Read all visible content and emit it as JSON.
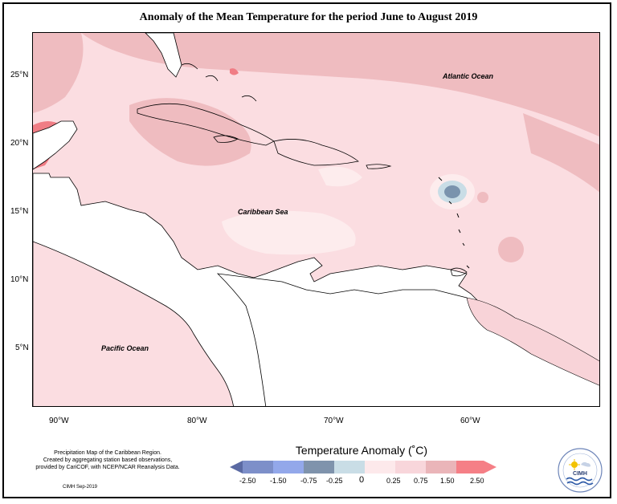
{
  "title": "Anomaly of the Mean Temperature for the period June to August 2019",
  "map": {
    "lat_ticks": [
      "25°N",
      "20°N",
      "15°N",
      "10°N",
      "5°N"
    ],
    "lon_ticks": [
      "90°W",
      "80°W",
      "70°W",
      "60°W"
    ],
    "labels": {
      "atlantic": "Atlantic Ocean",
      "caribbean": "Caribbean Sea",
      "pacific": "Pacific Ocean"
    },
    "colors": {
      "land": "#ffffff",
      "anom_pos_light": "#fde5e8",
      "anom_pos_mid": "#f8d3d8",
      "anom_pos_strong": "#ecb6b9",
      "anom_pos_max": "#f07d85",
      "anom_neg_small": "#c9dde6",
      "anom_neg_mid": "#7a93ad"
    }
  },
  "footnote": {
    "line1": "Precipitation Map of the Caribbean Region.",
    "line2": "Created by aggregating station based observations,",
    "line3": "provided by CariCOF, with NCEP/NCAR Reanalysis Data.",
    "date": "CIMH Sep-2019"
  },
  "legend": {
    "title": "Temperature Anomaly (˚C)",
    "labels": [
      "-2.50",
      "-1.50",
      "-0.75",
      "-0.25",
      "0",
      "0.25",
      "0.75",
      "1.50",
      "2.50"
    ],
    "colors": [
      "#5b6aa3",
      "#7d8fc9",
      "#93a8ea",
      "#7f93ac",
      "#c9dde6",
      "#fde9eb",
      "#f8d6db",
      "#eab5b9",
      "#f57f86"
    ]
  },
  "logo": {
    "text": "CIMH",
    "icon": "cimh-logo-icon"
  }
}
